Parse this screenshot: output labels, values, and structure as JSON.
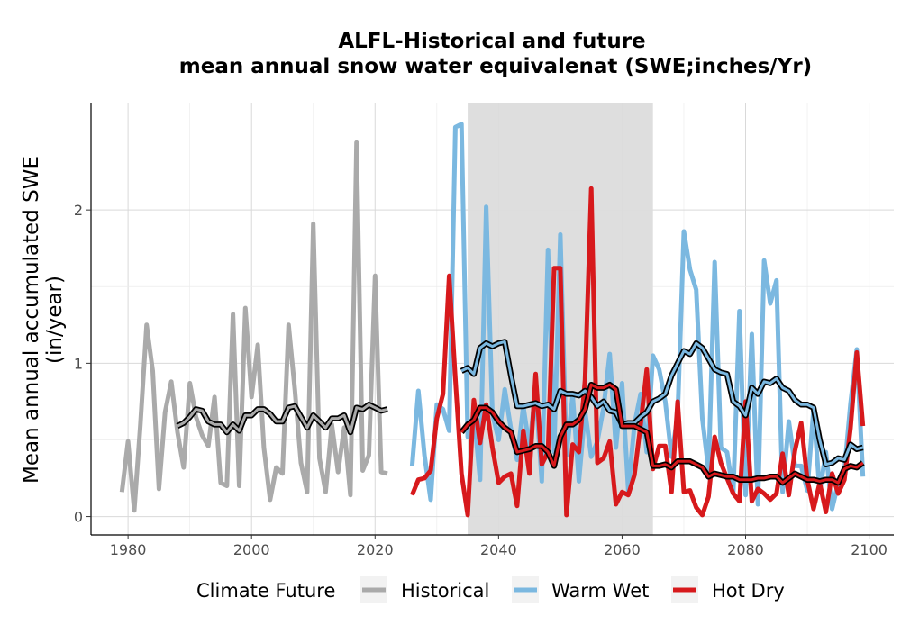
{
  "chart_data": {
    "type": "line",
    "title": [
      "ALFL-Historical and future",
      "mean annual snow water equivalenat (SWE;inches/Yr)"
    ],
    "xlabel": "",
    "ylabel": [
      "Mean annual accumulated SWE",
      "(in/year)"
    ],
    "xlim": [
      1974,
      2104
    ],
    "ylim": [
      -0.12,
      2.7
    ],
    "x_ticks": [
      1980,
      2000,
      2020,
      2040,
      2060,
      2080,
      2100
    ],
    "y_ticks": [
      0,
      1,
      2
    ],
    "grid": true,
    "shaded_period": [
      2035,
      2065
    ],
    "colors": {
      "historical": "#aaaaaa",
      "warm_wet": "#7bb8e0",
      "hot_dry": "#d7191c",
      "shade": "#dcdcdc",
      "smooth_outline": "#000000"
    },
    "legend": {
      "title": "Climate Future",
      "position": "bottom",
      "entries": [
        "Historical",
        "Warm Wet",
        "Hot Dry"
      ]
    },
    "series": [
      {
        "name": "Historical",
        "x": [
          1979,
          1980,
          1981,
          1982,
          1983,
          1984,
          1985,
          1986,
          1987,
          1988,
          1989,
          1990,
          1991,
          1992,
          1993,
          1994,
          1995,
          1996,
          1997,
          1998,
          1999,
          2000,
          2001,
          2002,
          2003,
          2004,
          2005,
          2006,
          2007,
          2008,
          2009,
          2010,
          2011,
          2012,
          2013,
          2014,
          2015,
          2016,
          2017,
          2018,
          2019,
          2020,
          2021,
          2022
        ],
        "y": [
          0.16,
          0.49,
          0.04,
          0.6,
          1.25,
          0.95,
          0.18,
          0.68,
          0.88,
          0.55,
          0.32,
          0.87,
          0.65,
          0.53,
          0.46,
          0.78,
          0.22,
          0.2,
          1.32,
          0.2,
          1.36,
          0.78,
          1.12,
          0.45,
          0.11,
          0.32,
          0.28,
          1.25,
          0.83,
          0.35,
          0.16,
          1.91,
          0.38,
          0.16,
          0.6,
          0.29,
          0.58,
          0.14,
          2.44,
          0.3,
          0.4,
          1.57,
          0.29,
          0.28
        ]
      },
      {
        "name": "Warm Wet",
        "x": [
          2026,
          2027,
          2028,
          2029,
          2030,
          2031,
          2032,
          2033,
          2034,
          2035,
          2036,
          2037,
          2038,
          2039,
          2040,
          2041,
          2042,
          2043,
          2044,
          2045,
          2046,
          2047,
          2048,
          2049,
          2050,
          2051,
          2052,
          2053,
          2054,
          2055,
          2056,
          2057,
          2058,
          2059,
          2060,
          2061,
          2062,
          2063,
          2064,
          2065,
          2066,
          2067,
          2068,
          2069,
          2070,
          2071,
          2072,
          2073,
          2074,
          2075,
          2076,
          2077,
          2078,
          2079,
          2080,
          2081,
          2082,
          2083,
          2084,
          2085,
          2086,
          2087,
          2088,
          2089,
          2090,
          2091,
          2092,
          2093,
          2094,
          2095,
          2096,
          2097,
          2098,
          2099
        ],
        "y": [
          0.33,
          0.82,
          0.4,
          0.11,
          0.73,
          0.7,
          0.56,
          2.54,
          2.56,
          0.52,
          0.67,
          0.24,
          2.02,
          0.67,
          0.5,
          0.83,
          0.57,
          0.37,
          0.72,
          0.45,
          0.83,
          0.23,
          1.74,
          0.42,
          1.84,
          0.4,
          0.79,
          0.23,
          0.69,
          0.39,
          0.49,
          0.71,
          1.06,
          0.45,
          0.87,
          0.17,
          0.6,
          0.8,
          0.42,
          1.05,
          0.96,
          0.75,
          0.39,
          0.66,
          1.86,
          1.61,
          1.48,
          0.64,
          0.3,
          1.66,
          0.45,
          0.42,
          0.15,
          1.34,
          0.14,
          1.19,
          0.08,
          1.67,
          1.39,
          1.54,
          0.16,
          0.62,
          0.33,
          0.33,
          0.17,
          0.7,
          0.16,
          0.42,
          0.05,
          0.22,
          0.3,
          0.74,
          1.09,
          0.26
        ]
      },
      {
        "name": "Hot Dry",
        "x": [
          2026,
          2027,
          2028,
          2029,
          2030,
          2031,
          2032,
          2033,
          2034,
          2035,
          2036,
          2037,
          2038,
          2039,
          2040,
          2041,
          2042,
          2043,
          2044,
          2045,
          2046,
          2047,
          2048,
          2049,
          2050,
          2051,
          2052,
          2053,
          2054,
          2055,
          2056,
          2057,
          2058,
          2059,
          2060,
          2061,
          2062,
          2063,
          2064,
          2065,
          2066,
          2067,
          2068,
          2069,
          2070,
          2071,
          2072,
          2073,
          2074,
          2075,
          2076,
          2077,
          2078,
          2079,
          2080,
          2081,
          2082,
          2083,
          2084,
          2085,
          2086,
          2087,
          2088,
          2089,
          2090,
          2091,
          2092,
          2093,
          2094,
          2095,
          2096,
          2097,
          2098,
          2099
        ],
        "y": [
          0.14,
          0.24,
          0.25,
          0.3,
          0.64,
          0.8,
          1.57,
          0.9,
          0.28,
          0.01,
          0.76,
          0.48,
          0.73,
          0.45,
          0.22,
          0.26,
          0.28,
          0.07,
          0.56,
          0.28,
          0.93,
          0.34,
          0.42,
          1.62,
          1.62,
          0.01,
          0.47,
          0.42,
          0.89,
          2.14,
          0.35,
          0.38,
          0.49,
          0.08,
          0.16,
          0.14,
          0.27,
          0.6,
          0.96,
          0.31,
          0.46,
          0.46,
          0.16,
          0.75,
          0.16,
          0.17,
          0.06,
          0.01,
          0.13,
          0.52,
          0.35,
          0.25,
          0.15,
          0.1,
          0.75,
          0.1,
          0.18,
          0.15,
          0.11,
          0.15,
          0.41,
          0.14,
          0.43,
          0.61,
          0.24,
          0.05,
          0.22,
          0.03,
          0.28,
          0.15,
          0.24,
          0.58,
          1.07,
          0.59
        ]
      }
    ],
    "smoothed_series": [
      {
        "name": "Historical",
        "x": [
          1988,
          1989,
          1990,
          1991,
          1992,
          1993,
          1994,
          1995,
          1996,
          1997,
          1998,
          1999,
          2000,
          2001,
          2002,
          2003,
          2004,
          2005,
          2006,
          2007,
          2008,
          2009,
          2010,
          2011,
          2012,
          2013,
          2014,
          2015,
          2016,
          2017,
          2018,
          2019,
          2020,
          2021,
          2022
        ],
        "y": [
          0.59,
          0.61,
          0.65,
          0.7,
          0.69,
          0.62,
          0.6,
          0.6,
          0.55,
          0.6,
          0.56,
          0.66,
          0.66,
          0.7,
          0.7,
          0.67,
          0.62,
          0.62,
          0.71,
          0.72,
          0.65,
          0.58,
          0.66,
          0.62,
          0.58,
          0.64,
          0.64,
          0.66,
          0.55,
          0.71,
          0.7,
          0.73,
          0.71,
          0.69,
          0.7
        ]
      },
      {
        "name": "Warm Wet",
        "x": [
          2034,
          2035,
          2036,
          2037,
          2038,
          2039,
          2040,
          2041,
          2042,
          2043,
          2044,
          2045,
          2046,
          2047,
          2048,
          2049,
          2050,
          2051,
          2052,
          2053,
          2054,
          2055,
          2056,
          2057,
          2058,
          2059,
          2060,
          2061,
          2062,
          2063,
          2064,
          2065,
          2066,
          2067,
          2068,
          2069,
          2070,
          2071,
          2072,
          2073,
          2074,
          2075,
          2076,
          2077,
          2078,
          2079,
          2080,
          2081,
          2082,
          2083,
          2084,
          2085,
          2086,
          2087,
          2088,
          2089,
          2090,
          2091,
          2092,
          2093,
          2094,
          2095,
          2096,
          2097,
          2098,
          2099
        ],
        "y": [
          0.95,
          0.97,
          0.93,
          1.1,
          1.13,
          1.11,
          1.13,
          1.14,
          0.92,
          0.72,
          0.72,
          0.73,
          0.74,
          0.72,
          0.73,
          0.7,
          0.82,
          0.8,
          0.8,
          0.79,
          0.82,
          0.78,
          0.72,
          0.75,
          0.69,
          0.68,
          0.6,
          0.61,
          0.61,
          0.65,
          0.68,
          0.75,
          0.77,
          0.8,
          0.92,
          1.0,
          1.08,
          1.06,
          1.13,
          1.1,
          1.03,
          0.96,
          0.94,
          0.93,
          0.75,
          0.72,
          0.66,
          0.84,
          0.8,
          0.88,
          0.87,
          0.9,
          0.84,
          0.82,
          0.76,
          0.73,
          0.73,
          0.71,
          0.5,
          0.34,
          0.35,
          0.38,
          0.37,
          0.47,
          0.44,
          0.45
        ]
      },
      {
        "name": "Hot Dry",
        "x": [
          2034,
          2035,
          2036,
          2037,
          2038,
          2039,
          2040,
          2041,
          2042,
          2043,
          2044,
          2045,
          2046,
          2047,
          2048,
          2049,
          2050,
          2051,
          2052,
          2053,
          2054,
          2055,
          2056,
          2057,
          2058,
          2059,
          2060,
          2061,
          2062,
          2063,
          2064,
          2065,
          2066,
          2067,
          2068,
          2069,
          2070,
          2071,
          2072,
          2073,
          2074,
          2075,
          2076,
          2077,
          2078,
          2079,
          2080,
          2081,
          2082,
          2083,
          2084,
          2085,
          2086,
          2087,
          2088,
          2089,
          2090,
          2091,
          2092,
          2093,
          2094,
          2095,
          2096,
          2097,
          2098,
          2099
        ],
        "y": [
          0.55,
          0.6,
          0.63,
          0.71,
          0.71,
          0.68,
          0.62,
          0.58,
          0.55,
          0.42,
          0.43,
          0.44,
          0.46,
          0.46,
          0.42,
          0.33,
          0.52,
          0.6,
          0.6,
          0.63,
          0.7,
          0.86,
          0.84,
          0.84,
          0.86,
          0.83,
          0.59,
          0.59,
          0.59,
          0.57,
          0.55,
          0.33,
          0.33,
          0.34,
          0.32,
          0.36,
          0.36,
          0.36,
          0.34,
          0.32,
          0.26,
          0.28,
          0.27,
          0.26,
          0.26,
          0.24,
          0.24,
          0.24,
          0.25,
          0.25,
          0.26,
          0.26,
          0.22,
          0.25,
          0.28,
          0.26,
          0.24,
          0.24,
          0.23,
          0.24,
          0.24,
          0.22,
          0.31,
          0.33,
          0.32,
          0.35
        ]
      }
    ]
  }
}
